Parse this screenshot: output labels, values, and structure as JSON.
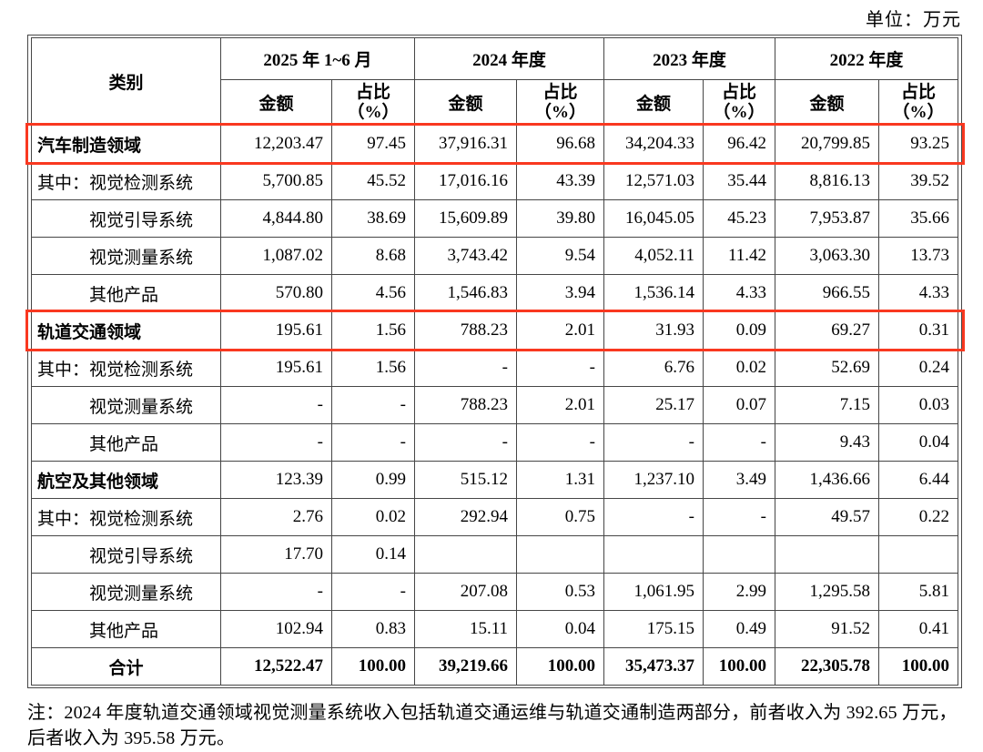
{
  "unit_label": "单位：万元",
  "colors": {
    "highlight_red": "#f93820",
    "table_border": "#464646"
  },
  "table": {
    "category_header": "类别",
    "amount_label": "金额",
    "share_label": "占比\n（%）",
    "periods": [
      {
        "label": "2025 年 1~6 月"
      },
      {
        "label": "2024 年度"
      },
      {
        "label": "2023 年度"
      },
      {
        "label": "2022 年度"
      }
    ],
    "rows": [
      {
        "label": "汽车制造领域",
        "type": "area",
        "highlight": true,
        "values": [
          "12,203.47",
          "97.45",
          "37,916.31",
          "96.68",
          "34,204.33",
          "96.42",
          "20,799.85",
          "93.25"
        ]
      },
      {
        "label": "其中：视觉检测系统",
        "type": "qizhong",
        "highlight": false,
        "values": [
          "5,700.85",
          "45.52",
          "17,016.16",
          "43.39",
          "12,571.03",
          "35.44",
          "8,816.13",
          "39.52"
        ]
      },
      {
        "label": "视觉引导系统",
        "type": "sub",
        "highlight": false,
        "values": [
          "4,844.80",
          "38.69",
          "15,609.89",
          "39.80",
          "16,045.05",
          "45.23",
          "7,953.87",
          "35.66"
        ]
      },
      {
        "label": "视觉测量系统",
        "type": "sub",
        "highlight": false,
        "values": [
          "1,087.02",
          "8.68",
          "3,743.42",
          "9.54",
          "4,052.11",
          "11.42",
          "3,063.30",
          "13.73"
        ]
      },
      {
        "label": "其他产品",
        "type": "sub",
        "highlight": false,
        "values": [
          "570.80",
          "4.56",
          "1,546.83",
          "3.94",
          "1,536.14",
          "4.33",
          "966.55",
          "4.33"
        ]
      },
      {
        "label": "轨道交通领域",
        "type": "area",
        "highlight": true,
        "values": [
          "195.61",
          "1.56",
          "788.23",
          "2.01",
          "31.93",
          "0.09",
          "69.27",
          "0.31"
        ]
      },
      {
        "label": "其中：视觉检测系统",
        "type": "qizhong",
        "highlight": false,
        "values": [
          "195.61",
          "1.56",
          "-",
          "-",
          "6.76",
          "0.02",
          "52.69",
          "0.24"
        ]
      },
      {
        "label": "视觉测量系统",
        "type": "sub",
        "highlight": false,
        "values": [
          "-",
          "-",
          "788.23",
          "2.01",
          "25.17",
          "0.07",
          "7.15",
          "0.03"
        ]
      },
      {
        "label": "其他产品",
        "type": "sub",
        "highlight": false,
        "values": [
          "-",
          "-",
          "-",
          "-",
          "-",
          "-",
          "9.43",
          "0.04"
        ]
      },
      {
        "label": "航空及其他领域",
        "type": "area",
        "highlight": false,
        "values": [
          "123.39",
          "0.99",
          "515.12",
          "1.31",
          "1,237.10",
          "3.49",
          "1,436.66",
          "6.44"
        ]
      },
      {
        "label": "其中：视觉检测系统",
        "type": "qizhong",
        "highlight": false,
        "values": [
          "2.76",
          "0.02",
          "292.94",
          "0.75",
          "-",
          "-",
          "49.57",
          "0.22"
        ]
      },
      {
        "label": "视觉引导系统",
        "type": "sub",
        "highlight": false,
        "values": [
          "17.70",
          "0.14",
          "",
          "",
          "",
          "",
          "",
          ""
        ]
      },
      {
        "label": "视觉测量系统",
        "type": "sub",
        "highlight": false,
        "values": [
          "-",
          "-",
          "207.08",
          "0.53",
          "1,061.95",
          "2.99",
          "1,295.58",
          "5.81"
        ]
      },
      {
        "label": "其他产品",
        "type": "sub",
        "highlight": false,
        "values": [
          "102.94",
          "0.83",
          "15.11",
          "0.04",
          "175.15",
          "0.49",
          "91.52",
          "0.41"
        ]
      },
      {
        "label": "合计",
        "type": "total",
        "highlight": false,
        "values": [
          "12,522.47",
          "100.00",
          "39,219.66",
          "100.00",
          "35,473.37",
          "100.00",
          "22,305.78",
          "100.00"
        ]
      }
    ]
  },
  "footnote": "注：2024 年度轨道交通领域视觉测量系统收入包括轨道交通运维与轨道交通制造两部分，前者收入为 392.65 万元，后者收入为 395.58 万元。"
}
